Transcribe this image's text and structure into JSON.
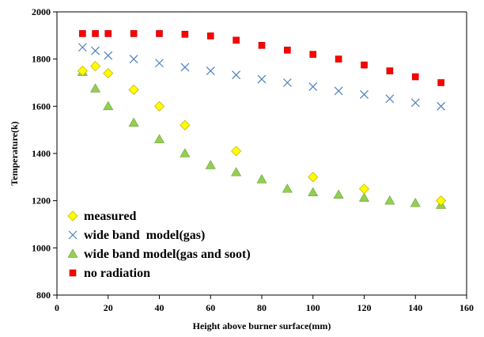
{
  "chart_data": {
    "type": "scatter",
    "title": "",
    "xlabel": "Height above burner surface(mm)",
    "ylabel": "Temperature(k)",
    "xlim": [
      0,
      160
    ],
    "ylim": [
      800,
      2000
    ],
    "x_ticks": [
      0,
      20,
      40,
      60,
      80,
      100,
      120,
      140,
      160
    ],
    "y_ticks": [
      800,
      1000,
      1200,
      1400,
      1600,
      1800,
      2000
    ],
    "grid": false,
    "legend_position": "lower-left",
    "series": [
      {
        "name": "measured",
        "marker": "diamond",
        "color": "#FFFF00",
        "stroke": "#C8B400",
        "points": [
          [
            10,
            1750
          ],
          [
            15,
            1770
          ],
          [
            20,
            1740
          ],
          [
            30,
            1670
          ],
          [
            40,
            1600
          ],
          [
            50,
            1520
          ],
          [
            70,
            1410
          ],
          [
            100,
            1300
          ],
          [
            120,
            1250
          ],
          [
            150,
            1200
          ]
        ]
      },
      {
        "name": "wide band  model(gas)",
        "marker": "x",
        "color": "#4F81BD",
        "stroke": "#4F81BD",
        "points": [
          [
            10,
            1850
          ],
          [
            15,
            1835
          ],
          [
            20,
            1815
          ],
          [
            30,
            1800
          ],
          [
            40,
            1783
          ],
          [
            50,
            1765
          ],
          [
            60,
            1750
          ],
          [
            70,
            1733
          ],
          [
            80,
            1715
          ],
          [
            90,
            1700
          ],
          [
            100,
            1683
          ],
          [
            110,
            1665
          ],
          [
            120,
            1650
          ],
          [
            130,
            1632
          ],
          [
            140,
            1615
          ],
          [
            150,
            1600
          ]
        ]
      },
      {
        "name": "wide band model(gas and soot)",
        "marker": "triangle",
        "color": "#92D050",
        "stroke": "#6E9E3A",
        "points": [
          [
            10,
            1745
          ],
          [
            15,
            1675
          ],
          [
            20,
            1600
          ],
          [
            30,
            1530
          ],
          [
            40,
            1460
          ],
          [
            50,
            1400
          ],
          [
            60,
            1350
          ],
          [
            70,
            1320
          ],
          [
            80,
            1290
          ],
          [
            90,
            1250
          ],
          [
            100,
            1235
          ],
          [
            110,
            1225
          ],
          [
            120,
            1212
          ],
          [
            130,
            1200
          ],
          [
            140,
            1190
          ],
          [
            150,
            1182
          ]
        ]
      },
      {
        "name": "no radiation",
        "marker": "square",
        "color": "#FF0000",
        "stroke": "#C00000",
        "points": [
          [
            10,
            1908
          ],
          [
            15,
            1908
          ],
          [
            20,
            1908
          ],
          [
            30,
            1908
          ],
          [
            40,
            1908
          ],
          [
            50,
            1905
          ],
          [
            60,
            1898
          ],
          [
            70,
            1880
          ],
          [
            80,
            1858
          ],
          [
            90,
            1838
          ],
          [
            100,
            1820
          ],
          [
            110,
            1800
          ],
          [
            120,
            1775
          ],
          [
            130,
            1750
          ],
          [
            140,
            1725
          ],
          [
            150,
            1700
          ]
        ]
      }
    ]
  }
}
